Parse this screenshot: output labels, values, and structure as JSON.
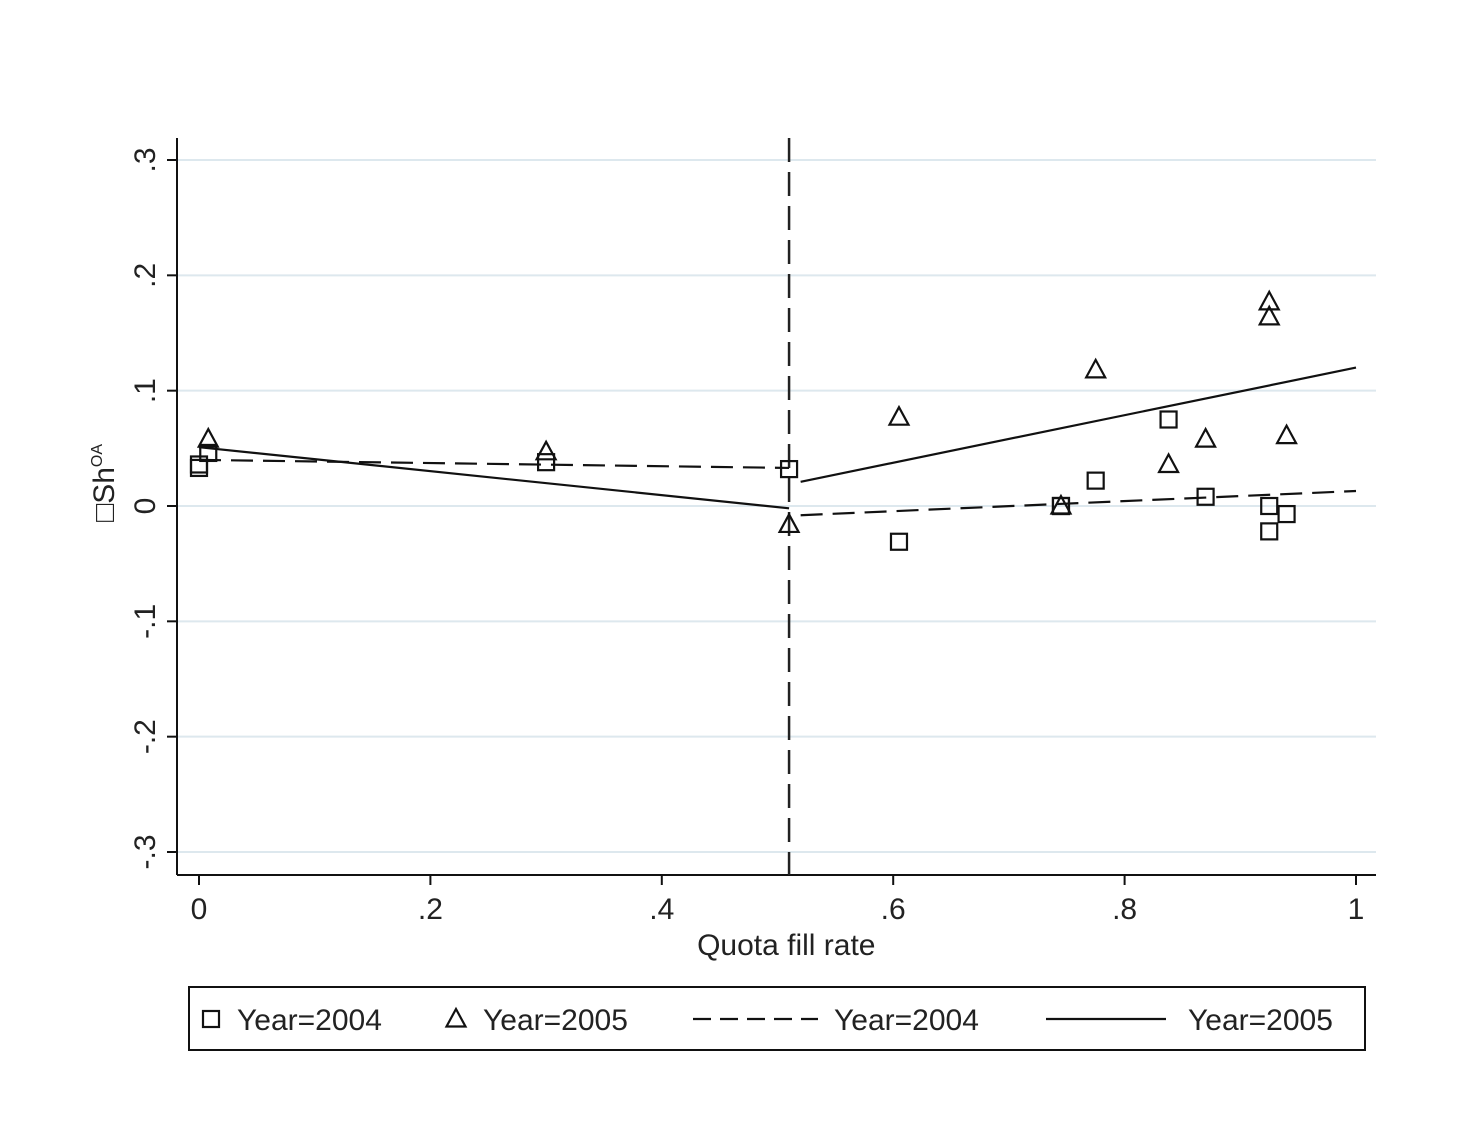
{
  "chart_data": {
    "type": "scatter",
    "title": "",
    "xlabel": "Quota fill rate",
    "ylabel": "□Sh",
    "ylabel_superscript": "OA",
    "xlim": [
      -0.02,
      1.02
    ],
    "ylim": [
      -0.32,
      0.32
    ],
    "x_ticks": [
      0,
      0.2,
      0.4,
      0.6,
      0.8,
      1
    ],
    "x_tick_labels": [
      "0",
      ".2",
      ".4",
      ".6",
      ".8",
      "1"
    ],
    "y_ticks": [
      0.3,
      0.2,
      0.1,
      0,
      -0.1,
      -0.2,
      -0.3
    ],
    "y_tick_labels": [
      ".3",
      ".2",
      ".1",
      "0",
      "-.1",
      "-.2",
      "-.3"
    ],
    "grid": "horizontal",
    "grid_color": "#dde8ee",
    "cutoff_x": 0.51,
    "series": [
      {
        "name": "Year=2004",
        "kind": "scatter",
        "marker": "square",
        "points": [
          [
            0.0,
            0.033
          ],
          [
            0.0,
            0.036
          ],
          [
            0.008,
            0.046
          ],
          [
            0.3,
            0.038
          ],
          [
            0.51,
            0.032
          ],
          [
            0.605,
            -0.031
          ],
          [
            0.745,
            0.0
          ],
          [
            0.745,
            0.0
          ],
          [
            0.775,
            0.022
          ],
          [
            0.838,
            0.075
          ],
          [
            0.87,
            0.008
          ],
          [
            0.925,
            0.0
          ],
          [
            0.925,
            -0.022
          ],
          [
            0.94,
            -0.007
          ]
        ]
      },
      {
        "name": "Year=2005",
        "kind": "scatter",
        "marker": "triangle",
        "points": [
          [
            0.008,
            0.058
          ],
          [
            0.3,
            0.047
          ],
          [
            0.51,
            -0.016
          ],
          [
            0.605,
            0.077
          ],
          [
            0.745,
            0.0
          ],
          [
            0.775,
            0.118
          ],
          [
            0.838,
            0.036
          ],
          [
            0.87,
            0.058
          ],
          [
            0.925,
            0.177
          ],
          [
            0.925,
            0.164
          ],
          [
            0.94,
            0.061
          ]
        ]
      },
      {
        "name": "Year=2004",
        "kind": "line",
        "style": "dashed",
        "segments": [
          [
            [
              0.0,
              0.04
            ],
            [
              0.51,
              0.033
            ]
          ],
          [
            [
              0.52,
              -0.008
            ],
            [
              1.0,
              0.013
            ]
          ]
        ]
      },
      {
        "name": "Year=2005",
        "kind": "line",
        "style": "solid",
        "segments": [
          [
            [
              0.0,
              0.051
            ],
            [
              0.51,
              -0.002
            ]
          ],
          [
            [
              0.52,
              0.021
            ],
            [
              1.0,
              0.12
            ]
          ]
        ]
      }
    ],
    "legend": {
      "placement": "bottom",
      "entries": [
        {
          "label": "Year=2004",
          "symbol": "square"
        },
        {
          "label": "Year=2005",
          "symbol": "triangle"
        },
        {
          "label": "Year=2004",
          "symbol": "dashed-line"
        },
        {
          "label": "Year=2005",
          "symbol": "solid-line"
        }
      ]
    }
  }
}
